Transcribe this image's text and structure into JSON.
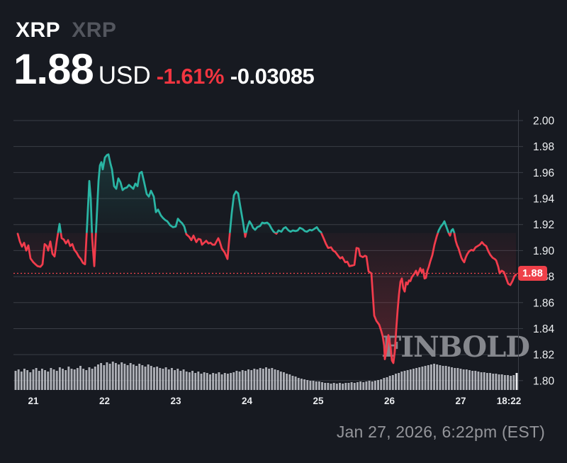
{
  "header": {
    "symbol": "XRP",
    "symbol_secondary": "XRP",
    "price": "1.88",
    "currency": "USD",
    "change_percent": "-1.61%",
    "change_value": "-0.03085"
  },
  "watermark": "FINBOLD",
  "footer": {
    "timestamp": "Jan 27, 2026, 6:22pm (EST)"
  },
  "colors": {
    "background": "#171a21",
    "grid": "#3a3e46",
    "up_teal": "#2ab5a4",
    "down_red": "#f23c4c",
    "badge_red": "#ef4049",
    "dotted_price_line": "#f0464e",
    "volume_gray": "#c9cbd1",
    "volume_last_bar": "#f0f1f4",
    "axis_text": "#eef0f2",
    "muted_text": "#95969b"
  },
  "chart_data": {
    "type": "line",
    "style": "baseline-area",
    "title": "XRP price, 7-day chart, Jan 21-27 2026",
    "x_unit": "screen px; day ticks 21..27 at x=47,147.5,248,348.5,449,549.5,650; chart ends 18:22 Jan 27 at x=728",
    "price_range": [
      1.8,
      2.0
    ],
    "baseline_price": 1.9135,
    "current_price": 1.8825,
    "current_price_label": "1.88",
    "y_axis": {
      "ticks": [
        "2.00",
        "1.98",
        "1.96",
        "1.94",
        "1.92",
        "1.90",
        "1.88",
        "1.86",
        "1.84",
        "1.82",
        "1.80"
      ]
    },
    "x_axis": {
      "ticks": [
        "21",
        "22",
        "23",
        "24",
        "25",
        "26",
        "27",
        "18:22"
      ]
    },
    "points": [
      [
        25,
        1.913
      ],
      [
        28,
        1.907
      ],
      [
        31,
        1.903
      ],
      [
        34,
        1.906
      ],
      [
        37,
        1.9
      ],
      [
        40,
        1.904
      ],
      [
        43,
        1.894
      ],
      [
        47,
        1.891
      ],
      [
        50,
        1.8895
      ],
      [
        53,
        1.888
      ],
      [
        57,
        1.8875
      ],
      [
        60,
        1.8895
      ],
      [
        63,
        1.905
      ],
      [
        66,
        1.9035
      ],
      [
        68,
        1.9
      ],
      [
        71,
        1.907
      ],
      [
        74,
        1.8975
      ],
      [
        77,
        1.8955
      ],
      [
        80,
        1.907
      ],
      [
        84,
        1.9205
      ],
      [
        87,
        1.9095
      ],
      [
        90,
        1.9085
      ],
      [
        93,
        1.9055
      ],
      [
        96,
        1.908
      ],
      [
        99,
        1.9035
      ],
      [
        102,
        1.905
      ],
      [
        105,
        1.9005
      ],
      [
        108,
        1.8985
      ],
      [
        111,
        1.8955
      ],
      [
        114,
        1.8935
      ],
      [
        117,
        1.8905
      ],
      [
        120,
        1.8895
      ],
      [
        123,
        1.9205
      ],
      [
        126,
        1.9535
      ],
      [
        128,
        1.9405
      ],
      [
        130,
        1.9095
      ],
      [
        133,
        1.888
      ],
      [
        136,
        1.9205
      ],
      [
        139,
        1.9535
      ],
      [
        141,
        1.9655
      ],
      [
        143,
        1.968
      ],
      [
        145,
        1.9625
      ],
      [
        148,
        1.9715
      ],
      [
        151,
        1.9735
      ],
      [
        153,
        1.974
      ],
      [
        156,
        1.9665
      ],
      [
        158,
        1.9625
      ],
      [
        161,
        1.9495
      ],
      [
        164,
        1.9475
      ],
      [
        167,
        1.9555
      ],
      [
        170,
        1.9525
      ],
      [
        173,
        1.9465
      ],
      [
        176,
        1.948
      ],
      [
        179,
        1.9485
      ],
      [
        182,
        1.9505
      ],
      [
        185,
        1.949
      ],
      [
        188,
        1.9475
      ],
      [
        191,
        1.9515
      ],
      [
        194,
        1.9495
      ],
      [
        197,
        1.9595
      ],
      [
        200,
        1.9605
      ],
      [
        203,
        1.9535
      ],
      [
        207,
        1.9435
      ],
      [
        210,
        1.9415
      ],
      [
        213,
        1.946
      ],
      [
        217,
        1.9415
      ],
      [
        220,
        1.9295
      ],
      [
        223,
        1.9315
      ],
      [
        227,
        1.927
      ],
      [
        230,
        1.925
      ],
      [
        233,
        1.9235
      ],
      [
        236,
        1.9225
      ],
      [
        240,
        1.9195
      ],
      [
        244,
        1.918
      ],
      [
        248,
        1.9185
      ],
      [
        251,
        1.9245
      ],
      [
        254,
        1.9225
      ],
      [
        257,
        1.921
      ],
      [
        260,
        1.9185
      ],
      [
        263,
        1.9125
      ],
      [
        267,
        1.9105
      ],
      [
        270,
        1.908
      ],
      [
        273,
        1.9115
      ],
      [
        277,
        1.9065
      ],
      [
        280,
        1.909
      ],
      [
        283,
        1.9085
      ],
      [
        285,
        1.9045
      ],
      [
        288,
        1.906
      ],
      [
        291,
        1.9075
      ],
      [
        294,
        1.9055
      ],
      [
        297,
        1.906
      ],
      [
        300,
        1.9045
      ],
      [
        303,
        1.9045
      ],
      [
        306,
        1.9075
      ],
      [
        308,
        1.9095
      ],
      [
        310,
        1.907
      ],
      [
        313,
        1.9015
      ],
      [
        317,
        1.8985
      ],
      [
        321,
        1.8935
      ],
      [
        323,
        1.906
      ],
      [
        327,
        1.929
      ],
      [
        330,
        1.9425
      ],
      [
        333,
        1.9455
      ],
      [
        336,
        1.944
      ],
      [
        339,
        1.934
      ],
      [
        343,
        1.9215
      ],
      [
        346,
        1.9105
      ],
      [
        349,
        1.918
      ],
      [
        352,
        1.9225
      ],
      [
        355,
        1.92
      ],
      [
        357,
        1.9175
      ],
      [
        360,
        1.916
      ],
      [
        363,
        1.918
      ],
      [
        367,
        1.919
      ],
      [
        370,
        1.9215
      ],
      [
        373,
        1.921
      ],
      [
        377,
        1.9215
      ],
      [
        380,
        1.92
      ],
      [
        383,
        1.917
      ],
      [
        386,
        1.9145
      ],
      [
        390,
        1.913
      ],
      [
        393,
        1.9155
      ],
      [
        397,
        1.9145
      ],
      [
        400,
        1.917
      ],
      [
        403,
        1.918
      ],
      [
        407,
        1.9155
      ],
      [
        410,
        1.9145
      ],
      [
        413,
        1.9155
      ],
      [
        417,
        1.915
      ],
      [
        420,
        1.9155
      ],
      [
        423,
        1.9175
      ],
      [
        427,
        1.9165
      ],
      [
        430,
        1.915
      ],
      [
        433,
        1.9145
      ],
      [
        437,
        1.916
      ],
      [
        440,
        1.9155
      ],
      [
        443,
        1.9165
      ],
      [
        447,
        1.918
      ],
      [
        450,
        1.9155
      ],
      [
        453,
        1.914
      ],
      [
        457,
        1.909
      ],
      [
        460,
        1.905
      ],
      [
        463,
        1.902
      ],
      [
        467,
        1.9025
      ],
      [
        470,
        1.9
      ],
      [
        473,
        1.899
      ],
      [
        477,
        1.896
      ],
      [
        480,
        1.894
      ],
      [
        483,
        1.895
      ],
      [
        487,
        1.891
      ],
      [
        490,
        1.8915
      ],
      [
        493,
        1.888
      ],
      [
        497,
        1.8885
      ],
      [
        500,
        1.889
      ],
      [
        503,
        1.902
      ],
      [
        506,
        1.9015
      ],
      [
        508,
        1.896
      ],
      [
        512,
        1.895
      ],
      [
        515,
        1.896
      ],
      [
        517,
        1.8955
      ],
      [
        520,
        1.884
      ],
      [
        524,
        1.8825
      ],
      [
        526,
        1.866
      ],
      [
        528,
        1.85
      ],
      [
        531,
        1.846
      ],
      [
        535,
        1.843
      ],
      [
        538,
        1.838
      ],
      [
        540,
        1.834
      ],
      [
        542,
        1.827
      ],
      [
        543,
        1.8165
      ],
      [
        546,
        1.826
      ],
      [
        548,
        1.835
      ],
      [
        551,
        1.826
      ],
      [
        553,
        1.8155
      ],
      [
        555,
        1.8135
      ],
      [
        557,
        1.822
      ],
      [
        559,
        1.839
      ],
      [
        561,
        1.854
      ],
      [
        563,
        1.8665
      ],
      [
        565,
        1.876
      ],
      [
        567,
        1.8785
      ],
      [
        569,
        1.871
      ],
      [
        571,
        1.8685
      ],
      [
        573,
        1.8755
      ],
      [
        575,
        1.874
      ],
      [
        577,
        1.877
      ],
      [
        579,
        1.8765
      ],
      [
        581,
        1.8795
      ],
      [
        583,
        1.881
      ],
      [
        585,
        1.8825
      ],
      [
        587,
        1.8845
      ],
      [
        589,
        1.881
      ],
      [
        591,
        1.8835
      ],
      [
        593,
        1.8865
      ],
      [
        595,
        1.8835
      ],
      [
        597,
        1.8855
      ],
      [
        599,
        1.8785
      ],
      [
        601,
        1.879
      ],
      [
        603,
        1.8845
      ],
      [
        605,
        1.8875
      ],
      [
        607,
        1.8915
      ],
      [
        610,
        1.8965
      ],
      [
        613,
        1.9045
      ],
      [
        616,
        1.9105
      ],
      [
        619,
        1.9155
      ],
      [
        622,
        1.9185
      ],
      [
        625,
        1.9205
      ],
      [
        627,
        1.9225
      ],
      [
        629,
        1.9195
      ],
      [
        631,
        1.9165
      ],
      [
        633,
        1.9135
      ],
      [
        635,
        1.9115
      ],
      [
        637,
        1.9155
      ],
      [
        639,
        1.9165
      ],
      [
        641,
        1.9135
      ],
      [
        643,
        1.9075
      ],
      [
        645,
        1.904
      ],
      [
        647,
        1.9015
      ],
      [
        649,
        1.898
      ],
      [
        651,
        1.8945
      ],
      [
        653,
        1.8925
      ],
      [
        655,
        1.891
      ],
      [
        657,
        1.8945
      ],
      [
        659,
        1.897
      ],
      [
        662,
        1.8995
      ],
      [
        665,
        1.9005
      ],
      [
        668,
        1.9
      ],
      [
        671,
        1.9025
      ],
      [
        674,
        1.9035
      ],
      [
        677,
        1.9045
      ],
      [
        680,
        1.9065
      ],
      [
        683,
        1.9045
      ],
      [
        686,
        1.9035
      ],
      [
        689,
        1.8995
      ],
      [
        692,
        1.8965
      ],
      [
        695,
        1.8945
      ],
      [
        698,
        1.8935
      ],
      [
        700,
        1.8925
      ],
      [
        703,
        1.8875
      ],
      [
        705,
        1.8825
      ],
      [
        708,
        1.8845
      ],
      [
        711,
        1.8835
      ],
      [
        714,
        1.879
      ],
      [
        717,
        1.8745
      ],
      [
        720,
        1.8735
      ],
      [
        723,
        1.8765
      ],
      [
        726,
        1.8805
      ],
      [
        728,
        1.8815
      ]
    ],
    "volume_unit": "relative bar height in px (max ~40), hourly bars left-to-right",
    "volume": [
      27,
      29,
      26,
      30,
      28,
      25,
      29,
      31,
      27,
      30,
      28,
      26,
      31,
      29,
      27,
      32,
      30,
      28,
      33,
      30,
      29,
      31,
      34,
      30,
      28,
      32,
      30,
      33,
      36,
      38,
      35,
      39,
      37,
      40,
      38,
      36,
      39,
      37,
      35,
      38,
      36,
      34,
      37,
      35,
      33,
      36,
      34,
      32,
      33,
      31,
      30,
      32,
      29,
      31,
      28,
      30,
      27,
      29,
      26,
      25,
      27,
      24,
      26,
      23,
      25,
      24,
      22,
      24,
      23,
      25,
      22,
      24,
      23,
      24,
      25,
      27,
      26,
      28,
      27,
      29,
      28,
      30,
      29,
      31,
      30,
      32,
      30,
      31,
      29,
      28,
      26,
      25,
      23,
      22,
      20,
      19,
      17,
      16,
      15,
      14,
      13,
      13,
      12,
      12,
      11,
      10,
      10,
      9,
      10,
      9,
      10,
      9,
      10,
      10,
      11,
      10,
      11,
      12,
      11,
      12,
      13,
      12,
      13,
      14,
      15,
      17,
      18,
      20,
      21,
      23,
      24,
      26,
      27,
      28,
      29,
      30,
      31,
      32,
      33,
      34,
      35,
      36,
      37,
      36,
      35,
      34,
      34,
      33,
      32,
      31,
      31,
      30,
      29,
      29,
      28,
      27,
      27,
      26,
      25,
      25,
      24,
      24,
      23,
      23,
      22,
      22,
      21,
      21,
      20,
      21,
      24
    ]
  }
}
